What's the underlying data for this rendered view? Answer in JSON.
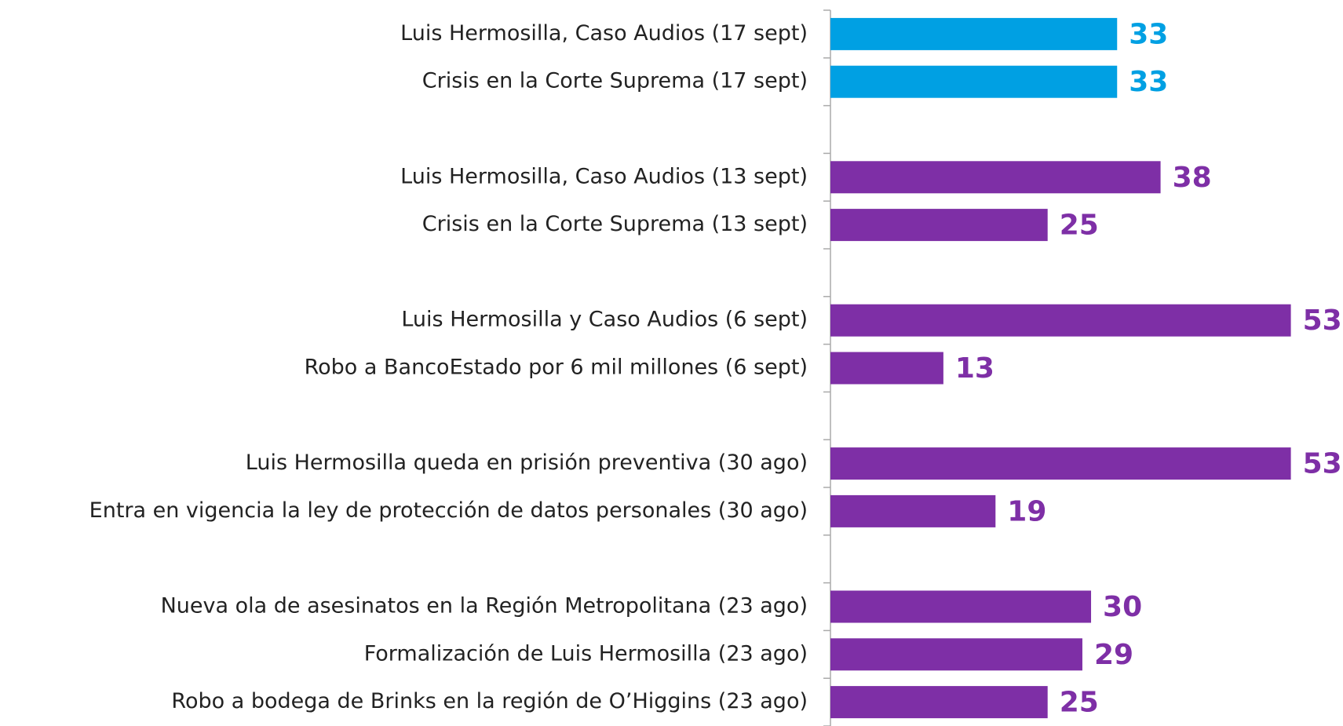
{
  "chart_data": {
    "type": "barh",
    "categories": [
      "Luis Hermosilla, Caso Audios (17 sept)",
      "Crisis en la Corte Suprema  (17 sept)",
      null,
      "Luis Hermosilla, Caso Audios (13 sept)",
      "Crisis en la Corte Suprema  (13 sept)",
      null,
      "Luis Hermosilla y Caso Audios (6 sept)",
      "Robo a BancoEstado por 6 mil millones (6 sept)",
      null,
      "Luis Hermosilla queda en prisión preventiva (30 ago)",
      "Entra en vigencia la ley de protección de datos personales (30 ago)",
      null,
      "Nueva ola de asesinatos en la Región Metropolitana (23 ago)",
      "Formalización de Luis Hermosilla (23 ago)",
      "Robo a bodega de Brinks en la región de O’Higgins (23 ago)"
    ],
    "values": [
      33,
      33,
      null,
      38,
      25,
      null,
      53,
      13,
      null,
      53,
      19,
      null,
      30,
      29,
      25
    ],
    "colors": [
      "#00a0e3",
      "#00a0e3",
      null,
      "#7e2fa6",
      "#7e2fa6",
      null,
      "#7e2fa6",
      "#7e2fa6",
      null,
      "#7e2fa6",
      "#7e2fa6",
      null,
      "#7e2fa6",
      "#7e2fa6",
      "#7e2fa6"
    ],
    "xlim": [
      0,
      59
    ]
  }
}
